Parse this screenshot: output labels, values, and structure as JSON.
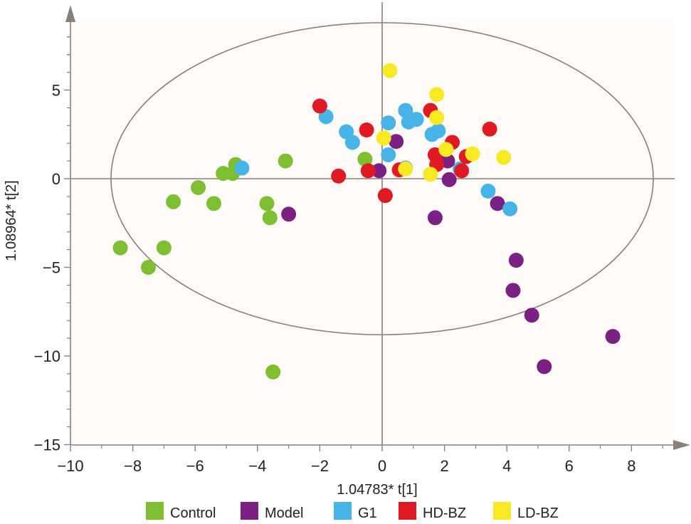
{
  "chart_data": {
    "type": "scatter",
    "title": "",
    "xlabel": "1.04783* t[1]",
    "ylabel": "1.08964* t[2]",
    "xlim": [
      -10,
      10
    ],
    "ylim": [
      -15,
      10
    ],
    "xticks": [
      -10,
      -8,
      -6,
      -4,
      -2,
      0,
      2,
      4,
      6,
      8
    ],
    "yticks": [
      5,
      0,
      -5,
      -10,
      -15
    ],
    "xtick_labels": [
      "−10",
      "−8",
      "−6",
      "−4",
      "−2",
      "0",
      "2",
      "4",
      "6",
      "8"
    ],
    "ytick_labels": [
      "5",
      "0",
      "−5",
      "−10",
      "−15"
    ],
    "background": "#fdfaf8",
    "axis_color": "#8a7f7b",
    "ellipse": {
      "center_x": 0,
      "center_y": 0,
      "semi_x": 8.7,
      "semi_y": 8.8
    },
    "legend_position": "bottom",
    "series": [
      {
        "name": "Control",
        "color": "#7dbf31",
        "points": [
          [
            -8.4,
            -3.9
          ],
          [
            -7.5,
            -5.0
          ],
          [
            -7.0,
            -3.9
          ],
          [
            -6.7,
            -1.3
          ],
          [
            -5.9,
            -0.5
          ],
          [
            -5.4,
            -1.4
          ],
          [
            -5.1,
            0.3
          ],
          [
            -4.8,
            0.3
          ],
          [
            -4.7,
            0.8
          ],
          [
            -3.7,
            -1.4
          ],
          [
            -3.6,
            -2.2
          ],
          [
            -3.1,
            1.0
          ],
          [
            -3.5,
            -10.9
          ],
          [
            -0.55,
            1.1
          ]
        ]
      },
      {
        "name": "Model",
        "color": "#7b2184",
        "points": [
          [
            -3.0,
            -2.0
          ],
          [
            -0.1,
            0.45
          ],
          [
            0.45,
            2.1
          ],
          [
            1.7,
            -2.2
          ],
          [
            2.1,
            1.0
          ],
          [
            2.15,
            -0.05
          ],
          [
            3.7,
            -1.4
          ],
          [
            4.3,
            -4.6
          ],
          [
            4.2,
            -6.3
          ],
          [
            4.8,
            -7.7
          ],
          [
            5.2,
            -10.6
          ],
          [
            7.4,
            -8.9
          ]
        ]
      },
      {
        "name": "G1",
        "color": "#46b4e6",
        "points": [
          [
            -4.5,
            0.6
          ],
          [
            -1.8,
            3.5
          ],
          [
            -1.15,
            2.65
          ],
          [
            -0.95,
            2.05
          ],
          [
            0.2,
            3.15
          ],
          [
            0.2,
            1.35
          ],
          [
            0.75,
            3.85
          ],
          [
            0.85,
            3.2
          ],
          [
            1.1,
            3.35
          ],
          [
            1.6,
            2.5
          ],
          [
            1.8,
            2.7
          ],
          [
            2.5,
            0.55
          ],
          [
            3.4,
            -0.7
          ],
          [
            4.1,
            -1.7
          ],
          [
            0.75,
            0.6
          ]
        ]
      },
      {
        "name": "HD-BZ",
        "color": "#e01a22",
        "points": [
          [
            -2.0,
            4.1
          ],
          [
            -1.4,
            0.15
          ],
          [
            -0.5,
            2.75
          ],
          [
            -0.45,
            0.45
          ],
          [
            0.1,
            -0.95
          ],
          [
            0.55,
            0.5
          ],
          [
            1.55,
            3.85
          ],
          [
            1.7,
            1.35
          ],
          [
            1.75,
            0.8
          ],
          [
            2.25,
            2.05
          ],
          [
            2.55,
            0.45
          ],
          [
            2.7,
            1.25
          ],
          [
            3.45,
            2.8
          ]
        ]
      },
      {
        "name": "LD-BZ",
        "color": "#f7ea22",
        "points": [
          [
            0.25,
            6.1
          ],
          [
            0.05,
            2.3
          ],
          [
            0.75,
            0.55
          ],
          [
            1.75,
            4.75
          ],
          [
            1.75,
            3.45
          ],
          [
            2.05,
            1.65
          ],
          [
            1.55,
            0.25
          ],
          [
            2.9,
            1.4
          ],
          [
            3.9,
            1.2
          ]
        ]
      }
    ]
  }
}
